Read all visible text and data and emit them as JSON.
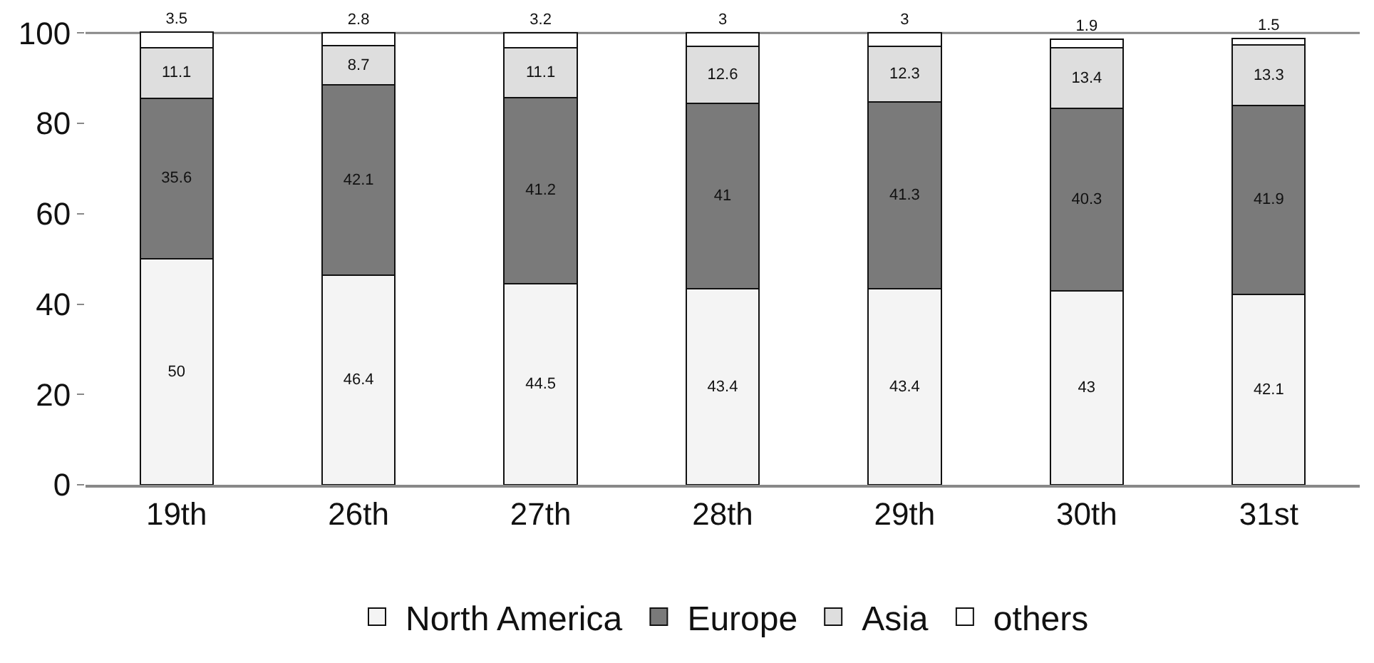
{
  "chart_data": {
    "type": "bar",
    "stacked": true,
    "data_labels": true,
    "categories": [
      "19th",
      "26th",
      "27th",
      "28th",
      "29th",
      "30th",
      "31st"
    ],
    "series": [
      {
        "name": "North America",
        "color": "#f4f4f4",
        "values": [
          50,
          46.4,
          44.5,
          43.4,
          43.4,
          43,
          42.1
        ]
      },
      {
        "name": "Europe",
        "color": "#7a7a7a",
        "values": [
          35.6,
          42.1,
          41.2,
          41,
          41.3,
          40.3,
          41.9
        ]
      },
      {
        "name": "Asia",
        "color": "#dedede",
        "values": [
          11.1,
          8.7,
          11.1,
          12.6,
          12.3,
          13.4,
          13.3
        ]
      },
      {
        "name": "others",
        "color": "#ffffff",
        "values": [
          3.5,
          2.8,
          3.2,
          3,
          3,
          1.9,
          1.5
        ]
      }
    ],
    "ylim": [
      0,
      101
    ],
    "yticks": [
      0,
      20,
      40,
      60,
      80,
      100
    ],
    "ref_lines": [
      {
        "axis": "y",
        "value": 100,
        "color": "#888888"
      }
    ],
    "grid": false,
    "legend": "bottom"
  }
}
